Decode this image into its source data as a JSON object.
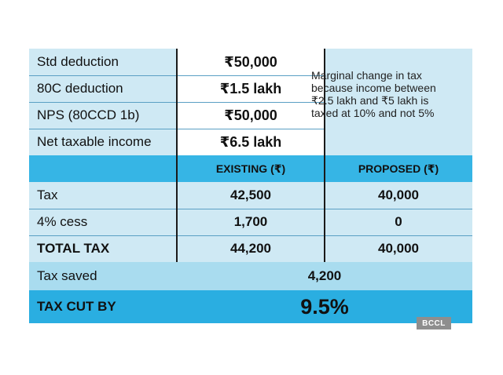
{
  "deductions": [
    {
      "label": "Std deduction",
      "value": "₹50,000"
    },
    {
      "label": "80C deduction",
      "value": "₹1.5 lakh"
    },
    {
      "label": "NPS (80CCD 1b)",
      "value": "₹50,000"
    },
    {
      "label": "Net taxable income",
      "value": "₹6.5 lakh"
    }
  ],
  "note": "Marginal change in tax because income between ₹2.5 lakh and ₹5 lakh is taxed at 10% and not 5%",
  "header": {
    "existing": "EXISTING (₹)",
    "proposed": "PROPOSED (₹)"
  },
  "tax_rows": [
    {
      "label": "Tax",
      "existing": "42,500",
      "proposed": "40,000"
    },
    {
      "label": "4% cess",
      "existing": "1,700",
      "proposed": "0"
    },
    {
      "label": "TOTAL TAX",
      "existing": "44,200",
      "proposed": "40,000"
    }
  ],
  "tax_saved": {
    "label": "Tax saved",
    "value": "4,200"
  },
  "tax_cut": {
    "label": "TAX CUT BY",
    "value": "9.5%"
  },
  "credit": "BCCL",
  "colors": {
    "light_blue": "#cfe9f4",
    "header_blue": "#36b5e5",
    "strong_blue": "#2aaee1"
  }
}
